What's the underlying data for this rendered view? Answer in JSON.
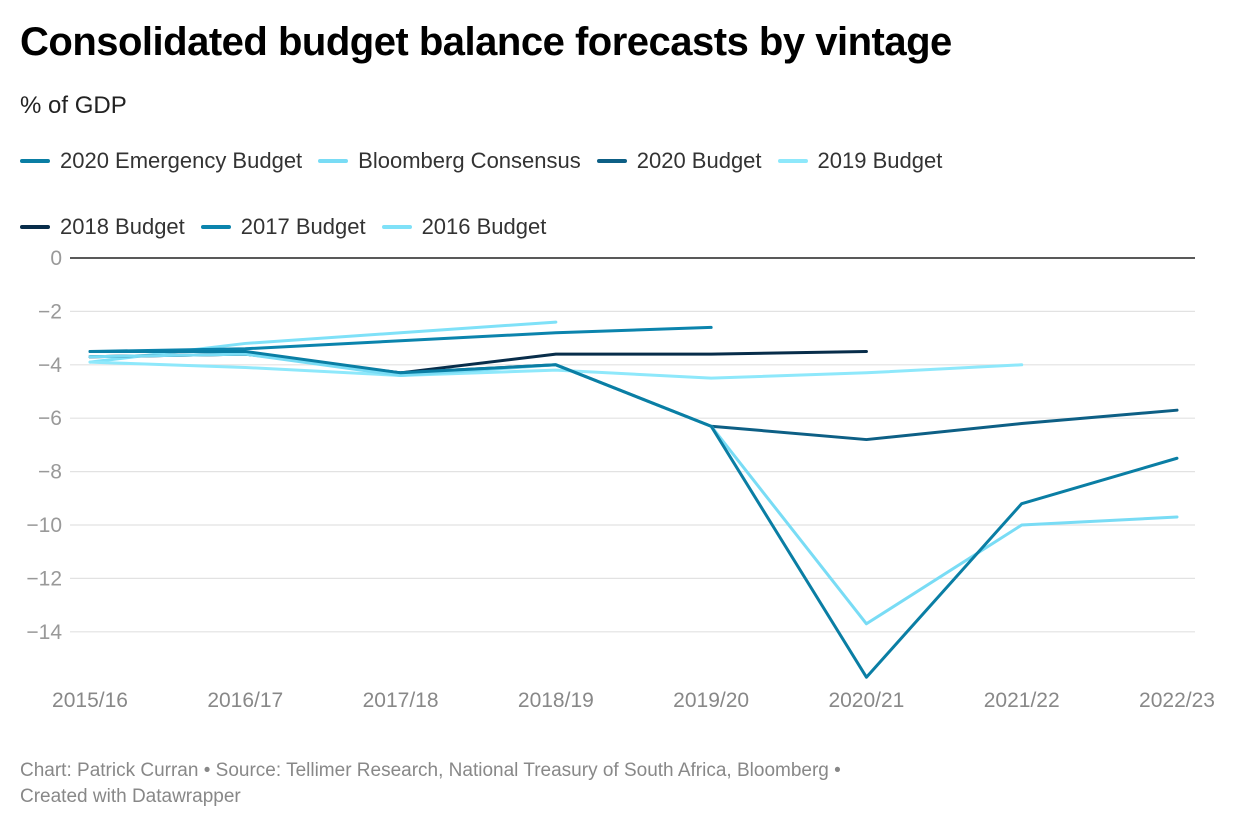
{
  "title": "Consolidated budget balance forecasts by vintage",
  "subtitle": "% of GDP",
  "footer": {
    "line1": "Chart: Patrick Curran • Source: Tellimer Research, National Treasury of South Africa, Bloomberg •",
    "line2": "Created with Datawrapper"
  },
  "chart_data": {
    "type": "line",
    "title": "Consolidated budget balance forecasts by vintage",
    "subtitle": "% of GDP",
    "xlabel": "",
    "ylabel": "",
    "categories": [
      "2015/16",
      "2016/17",
      "2017/18",
      "2018/19",
      "2019/20",
      "2020/21",
      "2021/22",
      "2022/23"
    ],
    "ylim": [
      -16,
      0
    ],
    "yticks": [
      0,
      -2,
      -4,
      -6,
      -8,
      -10,
      -12,
      -14
    ],
    "grid": true,
    "legend_position": "top",
    "series": [
      {
        "name": "2020 Emergency Budget",
        "color": "#0a7ea4",
        "values": [
          -3.5,
          -3.5,
          -4.3,
          -4.0,
          -6.3,
          -15.7,
          -9.2,
          -7.5
        ]
      },
      {
        "name": "Bloomberg Consensus",
        "color": "#79dcf5",
        "values": [
          -3.7,
          -3.6,
          -4.4,
          -4.0,
          -6.3,
          -13.7,
          -10.0,
          -9.7
        ]
      },
      {
        "name": "2020 Budget",
        "color": "#0d5f85",
        "values": [
          -3.7,
          -3.6,
          -4.3,
          -4.0,
          -6.3,
          -6.8,
          -6.2,
          -5.7
        ]
      },
      {
        "name": "2019 Budget",
        "color": "#8ee8fb",
        "values": [
          -3.9,
          -4.1,
          -4.4,
          -4.2,
          -4.5,
          -4.3,
          -4.0,
          null
        ]
      },
      {
        "name": "2018 Budget",
        "color": "#082d4a",
        "values": [
          -3.7,
          -3.6,
          -4.3,
          -3.6,
          -3.6,
          -3.5,
          null,
          null
        ]
      },
      {
        "name": "2017 Budget",
        "color": "#0b84ad",
        "values": [
          -3.5,
          -3.4,
          -3.1,
          -2.8,
          -2.6,
          null,
          null,
          null
        ]
      },
      {
        "name": "2016 Budget",
        "color": "#7fe1f8",
        "values": [
          -3.9,
          -3.2,
          -2.8,
          -2.4,
          null,
          null,
          null,
          null
        ]
      }
    ]
  }
}
